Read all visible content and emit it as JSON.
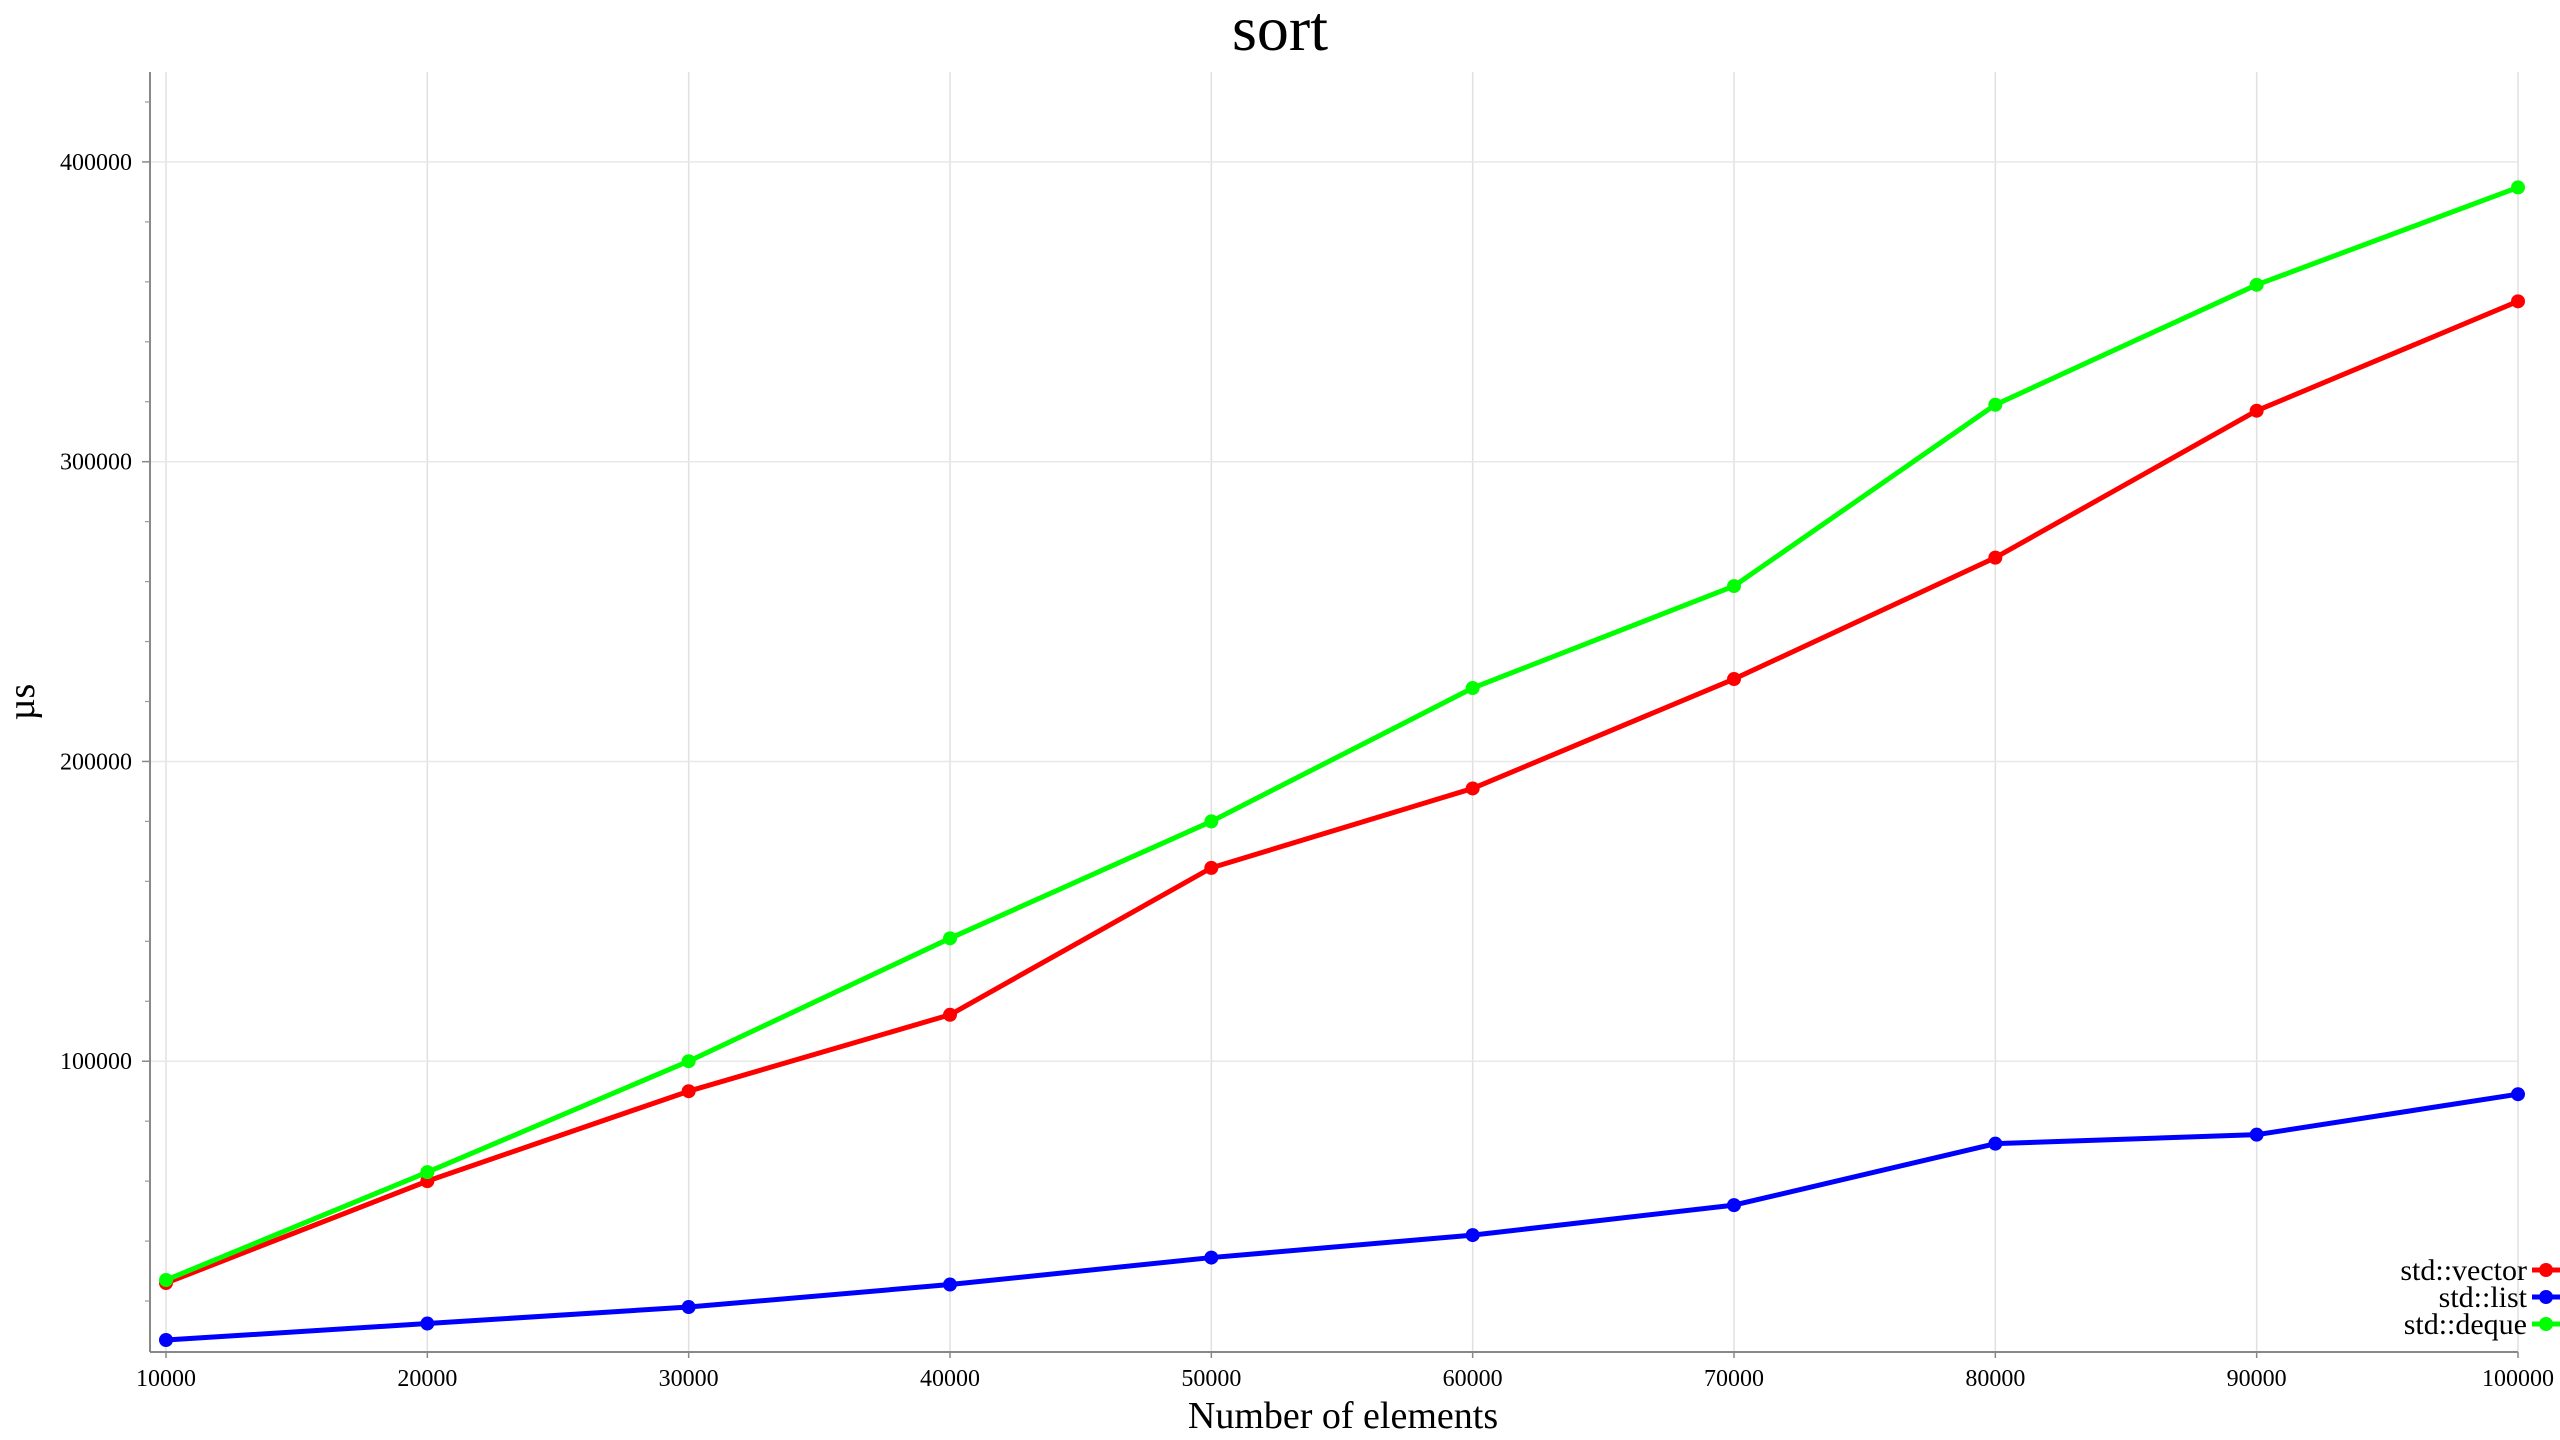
{
  "chart_data": {
    "type": "line",
    "title": "sort",
    "xlabel": "Number of elements",
    "ylabel": "µs",
    "x": [
      10000,
      20000,
      30000,
      40000,
      50000,
      60000,
      70000,
      80000,
      90000,
      100000
    ],
    "x_tick_labels": [
      "10000",
      "20000",
      "30000",
      "40000",
      "50000",
      "60000",
      "70000",
      "80000",
      "90000",
      "100000"
    ],
    "y_tick_values": [
      100000,
      200000,
      300000,
      400000
    ],
    "y_tick_labels": [
      "100000",
      "200000",
      "300000",
      "400000"
    ],
    "xlim": [
      9400,
      100000
    ],
    "ylim": [
      3000,
      430000
    ],
    "grid": true,
    "legend_position": "bottom-right",
    "series": [
      {
        "name": "std::vector",
        "color": "#ff0000",
        "values": [
          26000,
          60000,
          90000,
          115500,
          164500,
          191000,
          227500,
          268000,
          317000,
          353500
        ]
      },
      {
        "name": "std::list",
        "color": "#0000ff",
        "values": [
          7000,
          12500,
          18000,
          25500,
          34500,
          42000,
          52000,
          72500,
          75500,
          89000
        ]
      },
      {
        "name": "std::deque",
        "color": "#00ff00",
        "values": [
          27000,
          63000,
          100000,
          141000,
          180000,
          224500,
          258500,
          319000,
          359000,
          391500
        ]
      }
    ]
  }
}
